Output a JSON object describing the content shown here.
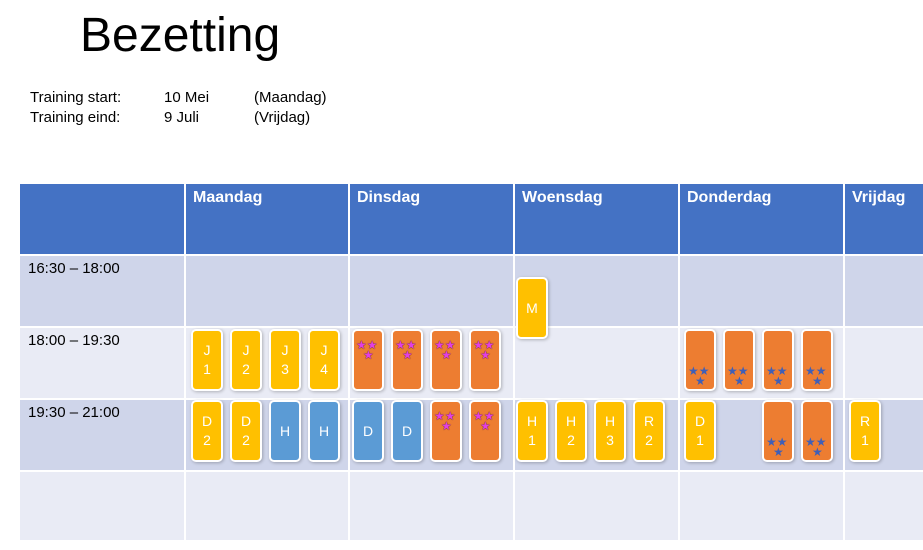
{
  "title": "Bezetting",
  "training": [
    {
      "label": "Training start:",
      "date": "10 Mei",
      "day": "(Maandag)"
    },
    {
      "label": "Training eind:",
      "date": "9 Juli",
      "day": "(Vrijdag)"
    }
  ],
  "days": [
    "Maandag",
    "Dinsdag",
    "Woensdag",
    "Donderdag",
    "Vrijdag"
  ],
  "timeslots": [
    "16:30 – 18:00",
    "18:00 – 19:30",
    "19:30 – 21:00"
  ],
  "colors": {
    "header": "#4472c4",
    "yellow": "#ffc000",
    "blue": "#5b9bd5",
    "orange": "#ed7d31"
  },
  "cards": [
    {
      "day": "Woensdag",
      "slot": "16:30 – 18:00",
      "color": "yellow",
      "text": "M"
    },
    {
      "day": "Maandag",
      "slot": "18:00 – 19:30",
      "color": "yellow",
      "text": "J\n1"
    },
    {
      "day": "Maandag",
      "slot": "18:00 – 19:30",
      "color": "yellow",
      "text": "J\n2"
    },
    {
      "day": "Maandag",
      "slot": "18:00 – 19:30",
      "color": "yellow",
      "text": "J\n3"
    },
    {
      "day": "Maandag",
      "slot": "18:00 – 19:30",
      "color": "yellow",
      "text": "J\n4"
    },
    {
      "day": "Dinsdag",
      "slot": "18:00 – 19:30",
      "color": "orange",
      "text": "",
      "icon": "pink-stars-icon"
    },
    {
      "day": "Dinsdag",
      "slot": "18:00 – 19:30",
      "color": "orange",
      "text": "",
      "icon": "pink-stars-icon"
    },
    {
      "day": "Dinsdag",
      "slot": "18:00 – 19:30",
      "color": "orange",
      "text": "",
      "icon": "pink-stars-icon"
    },
    {
      "day": "Dinsdag",
      "slot": "18:00 – 19:30",
      "color": "orange",
      "text": "",
      "icon": "pink-stars-icon"
    },
    {
      "day": "Donderdag",
      "slot": "18:00 – 19:30",
      "color": "orange",
      "text": "",
      "icon": "blue-stars-icon"
    },
    {
      "day": "Donderdag",
      "slot": "18:00 – 19:30",
      "color": "orange",
      "text": "",
      "icon": "blue-stars-icon"
    },
    {
      "day": "Donderdag",
      "slot": "18:00 – 19:30",
      "color": "orange",
      "text": "",
      "icon": "blue-stars-icon"
    },
    {
      "day": "Donderdag",
      "slot": "18:00 – 19:30",
      "color": "orange",
      "text": "",
      "icon": "blue-stars-icon"
    },
    {
      "day": "Maandag",
      "slot": "19:30 – 21:00",
      "color": "yellow",
      "text": "D\n2"
    },
    {
      "day": "Maandag",
      "slot": "19:30 – 21:00",
      "color": "yellow",
      "text": "D\n2"
    },
    {
      "day": "Maandag",
      "slot": "19:30 – 21:00",
      "color": "blue",
      "text": "H"
    },
    {
      "day": "Maandag",
      "slot": "19:30 – 21:00",
      "color": "blue",
      "text": "H"
    },
    {
      "day": "Dinsdag",
      "slot": "19:30 – 21:00",
      "color": "blue",
      "text": "D"
    },
    {
      "day": "Dinsdag",
      "slot": "19:30 – 21:00",
      "color": "blue",
      "text": "D"
    },
    {
      "day": "Dinsdag",
      "slot": "19:30 – 21:00",
      "color": "orange",
      "text": "",
      "icon": "pink-stars-icon"
    },
    {
      "day": "Dinsdag",
      "slot": "19:30 – 21:00",
      "color": "orange",
      "text": "",
      "icon": "pink-stars-icon"
    },
    {
      "day": "Woensdag",
      "slot": "19:30 – 21:00",
      "color": "yellow",
      "text": "H\n1"
    },
    {
      "day": "Woensdag",
      "slot": "19:30 – 21:00",
      "color": "yellow",
      "text": "H\n2"
    },
    {
      "day": "Woensdag",
      "slot": "19:30 – 21:00",
      "color": "yellow",
      "text": "H\n3"
    },
    {
      "day": "Woensdag",
      "slot": "19:30 – 21:00",
      "color": "yellow",
      "text": "R\n2"
    },
    {
      "day": "Donderdag",
      "slot": "19:30 – 21:00",
      "color": "yellow",
      "text": "D\n1"
    },
    {
      "day": "Donderdag",
      "slot": "19:30 – 21:00",
      "color": "orange",
      "text": "",
      "icon": "blue-stars-icon"
    },
    {
      "day": "Donderdag",
      "slot": "19:30 – 21:00",
      "color": "orange",
      "text": "",
      "icon": "blue-stars-icon"
    },
    {
      "day": "Vrijdag",
      "slot": "19:30 – 21:00",
      "color": "yellow",
      "text": "R\n1"
    }
  ]
}
